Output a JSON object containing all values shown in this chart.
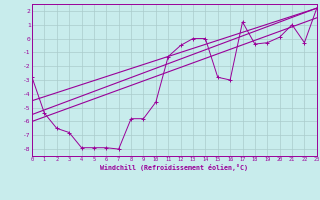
{
  "xlabel": "Windchill (Refroidissement éolien,°C)",
  "bg_color": "#c8ecec",
  "line_color": "#990099",
  "grid_color": "#aacccc",
  "xlim": [
    0,
    23
  ],
  "ylim": [
    -8.5,
    2.5
  ],
  "xticks": [
    0,
    1,
    2,
    3,
    4,
    5,
    6,
    7,
    8,
    9,
    10,
    11,
    12,
    13,
    14,
    15,
    16,
    17,
    18,
    19,
    20,
    21,
    22,
    23
  ],
  "yticks": [
    -8,
    -7,
    -6,
    -5,
    -4,
    -3,
    -2,
    -1,
    0,
    1,
    2
  ],
  "scatter_x": [
    0,
    1,
    2,
    3,
    4,
    5,
    6,
    7,
    8,
    9,
    10,
    11,
    12,
    13,
    14,
    15,
    16,
    17,
    18,
    19,
    20,
    21,
    22,
    23
  ],
  "scatter_y": [
    -2.8,
    -5.4,
    -6.5,
    -6.8,
    -7.9,
    -7.9,
    -7.9,
    -8.0,
    -5.8,
    -5.8,
    -4.6,
    -1.3,
    -0.5,
    0.0,
    0.0,
    -2.8,
    -3.0,
    1.2,
    -0.4,
    -0.3,
    0.1,
    1.0,
    -0.3,
    2.2
  ],
  "line1_x": [
    0,
    23
  ],
  "line1_y": [
    -5.5,
    2.2
  ],
  "line2_x": [
    0,
    23
  ],
  "line2_y": [
    -4.5,
    2.2
  ],
  "line3_x": [
    0,
    23
  ],
  "line3_y": [
    -6.0,
    1.5
  ]
}
